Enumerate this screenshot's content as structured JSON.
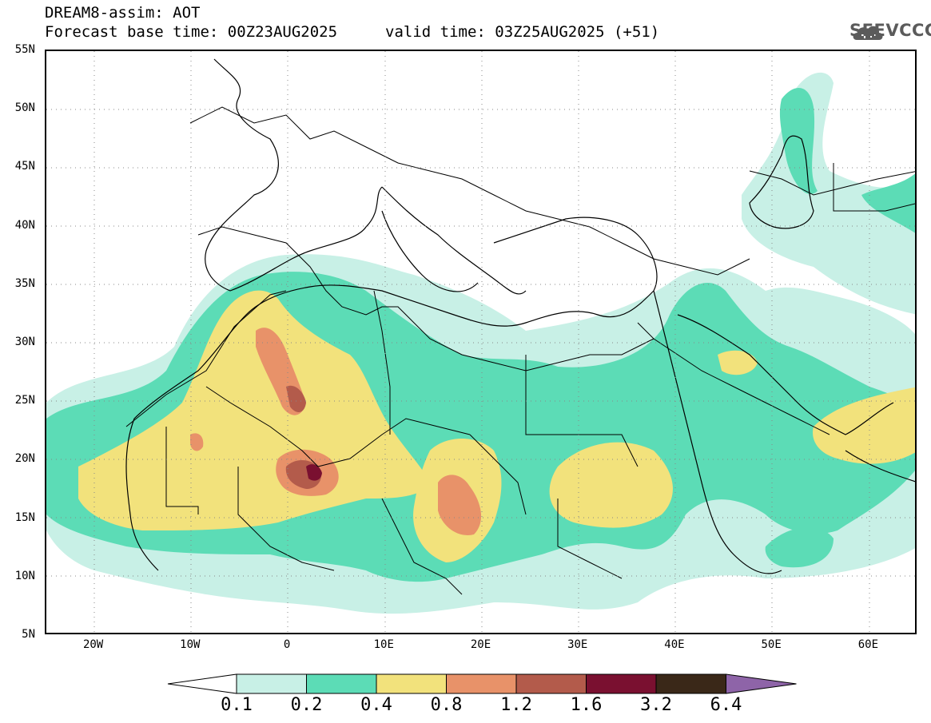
{
  "header": {
    "title_line1": "DREAM8-assim: AOT",
    "title_line2": "Forecast base time: 00Z23AUG2025",
    "valid_time": "valid time: 03Z25AUG2025 (+51)"
  },
  "logo": {
    "text": "SEEVCCC",
    "icon": "cloud-icon"
  },
  "map": {
    "lat_ticks": [
      "55N",
      "50N",
      "45N",
      "40N",
      "35N",
      "30N",
      "25N",
      "20N",
      "15N",
      "10N",
      "5N"
    ],
    "lon_ticks": [
      "20W",
      "10W",
      "0",
      "10E",
      "20E",
      "30E",
      "40E",
      "50E",
      "60E"
    ],
    "lon_range": [
      -25,
      65
    ],
    "lat_range": [
      5,
      55
    ]
  },
  "colorbar": {
    "labels": [
      "0.1",
      "0.2",
      "0.4",
      "0.8",
      "1.2",
      "1.6",
      "3.2",
      "6.4"
    ],
    "colors": [
      "#c8f0e6",
      "#5cdcb6",
      "#f2e27c",
      "#e89269",
      "#b35b4b",
      "#7a1030",
      "#3a2818",
      "#8e64a8"
    ]
  },
  "colors": {
    "aot_01": "#c8f0e6",
    "aot_02": "#5cdcb6",
    "aot_04": "#f2e27c",
    "aot_08": "#e89269",
    "aot_12": "#b35b4b",
    "aot_16": "#7a1030"
  }
}
